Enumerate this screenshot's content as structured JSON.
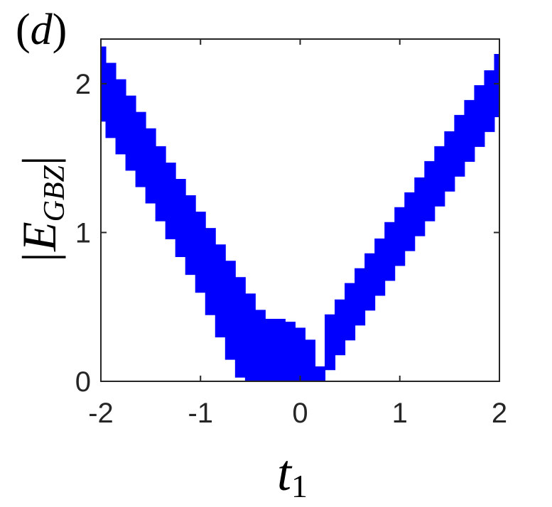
{
  "chart_data": {
    "type": "range",
    "annotation": [
      "(",
      "d",
      ")"
    ],
    "xlabel": [
      "t",
      "1"
    ],
    "ylabel": [
      "|E",
      "GBZ",
      "|"
    ],
    "color": "#0000ff",
    "x": [
      -2.0,
      -1.9,
      -1.8,
      -1.7,
      -1.6,
      -1.5,
      -1.4,
      -1.3,
      -1.2,
      -1.1,
      -1.0,
      -0.9,
      -0.8,
      -0.7,
      -0.6,
      -0.5,
      -0.4,
      -0.3,
      -0.2,
      -0.1,
      0.0,
      0.1,
      0.2,
      0.3,
      0.4,
      0.5,
      0.6,
      0.7,
      0.8,
      0.9,
      1.0,
      1.1,
      1.2,
      1.3,
      1.4,
      1.5,
      1.6,
      1.7,
      1.8,
      1.9,
      2.0
    ],
    "upper": [
      2.25,
      2.14,
      2.03,
      1.92,
      1.81,
      1.7,
      1.58,
      1.47,
      1.36,
      1.25,
      1.14,
      1.03,
      0.92,
      0.81,
      0.7,
      0.59,
      0.48,
      0.42,
      0.42,
      0.4,
      0.36,
      0.28,
      0.1,
      0.45,
      0.55,
      0.66,
      0.76,
      0.86,
      0.96,
      1.07,
      1.17,
      1.27,
      1.37,
      1.48,
      1.58,
      1.68,
      1.79,
      1.89,
      1.99,
      2.09,
      2.2
    ],
    "lower": [
      1.75,
      1.64,
      1.53,
      1.42,
      1.31,
      1.2,
      1.08,
      0.96,
      0.84,
      0.72,
      0.6,
      0.45,
      0.3,
      0.15,
      0.03,
      0,
      0,
      0,
      0,
      0,
      0,
      0,
      0,
      0.08,
      0.18,
      0.28,
      0.38,
      0.48,
      0.58,
      0.68,
      0.78,
      0.88,
      0.98,
      1.08,
      1.18,
      1.28,
      1.38,
      1.48,
      1.58,
      1.68,
      1.78
    ],
    "xlim": [
      -2,
      2
    ],
    "xticks": [
      -2,
      -1,
      0,
      1,
      2
    ],
    "ylim": [
      0,
      2.3
    ],
    "yticks": [
      0,
      1,
      2
    ]
  }
}
